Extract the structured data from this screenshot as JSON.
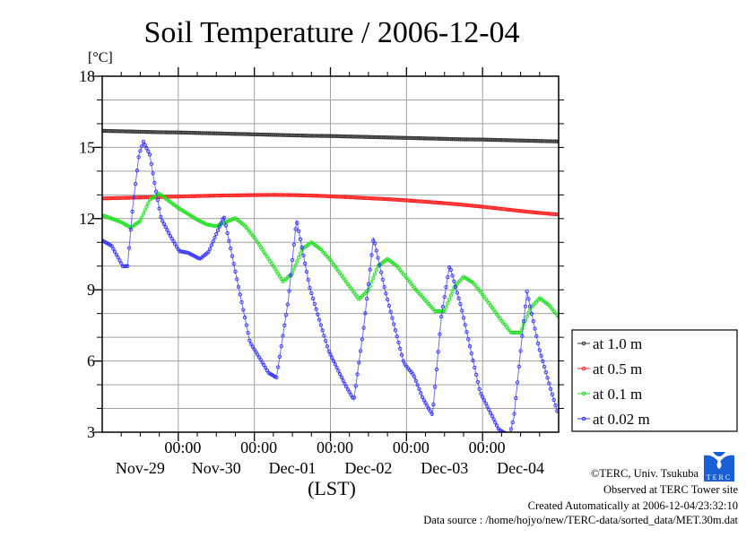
{
  "chart_data": {
    "type": "line",
    "title": "Soil Temperature / 2006-12-04",
    "ylabel": "[°C]",
    "xlabel": "(LST)",
    "ylim": [
      3,
      18
    ],
    "yticks": [
      "3",
      "6",
      "9",
      "12",
      "15",
      "18"
    ],
    "ytick_values": [
      3,
      6,
      9,
      12,
      15,
      18
    ],
    "x_units": "hours since Nov-29 00:00",
    "xlim": [
      0,
      144
    ],
    "xtick_hours": [
      24,
      48,
      72,
      96,
      120
    ],
    "xtick_labels": [
      "00:00",
      "00:00",
      "00:00",
      "00:00",
      "00:00"
    ],
    "date_label_hours": [
      -12,
      12,
      36,
      60,
      84,
      108
    ],
    "date_labels": [
      "Nov-29",
      "Nov-30",
      "Dec-01",
      "Dec-02",
      "Dec-03",
      "Dec-04"
    ],
    "grid": true,
    "legend_position": "right",
    "series": [
      {
        "name": "at 1.0 m",
        "color": "#333333",
        "x": [
          0,
          6,
          12,
          18,
          24,
          30,
          36,
          42,
          48,
          54,
          60,
          66,
          72,
          78,
          84,
          90,
          96,
          102,
          108,
          114,
          120,
          126,
          132,
          138,
          144
        ],
        "y": [
          15.7,
          15.68,
          15.66,
          15.64,
          15.63,
          15.61,
          15.59,
          15.57,
          15.55,
          15.53,
          15.51,
          15.49,
          15.48,
          15.46,
          15.44,
          15.42,
          15.4,
          15.38,
          15.36,
          15.34,
          15.33,
          15.31,
          15.29,
          15.27,
          15.25
        ]
      },
      {
        "name": "at 0.5 m",
        "color": "#ff2020",
        "x": [
          0,
          6,
          12,
          18,
          24,
          30,
          36,
          42,
          48,
          54,
          60,
          66,
          72,
          78,
          84,
          90,
          96,
          102,
          108,
          114,
          120,
          126,
          132,
          138,
          144
        ],
        "y": [
          12.85,
          12.87,
          12.89,
          12.91,
          12.93,
          12.95,
          12.97,
          12.98,
          12.99,
          13.0,
          12.99,
          12.97,
          12.94,
          12.9,
          12.86,
          12.82,
          12.77,
          12.71,
          12.65,
          12.58,
          12.5,
          12.41,
          12.32,
          12.24,
          12.17
        ]
      },
      {
        "name": "at 0.1 m",
        "color": "#20e020",
        "x": [
          0,
          3,
          6,
          9,
          12,
          15,
          18,
          21,
          24,
          27,
          30,
          33,
          36,
          39,
          42,
          45,
          48,
          51,
          54,
          57,
          60,
          63,
          66,
          69,
          72,
          75,
          78,
          81,
          84,
          87,
          90,
          93,
          96,
          99,
          102,
          105,
          108,
          111,
          114,
          117,
          120,
          123,
          126,
          129,
          132,
          135,
          138,
          141,
          144
        ],
        "y": [
          12.14,
          12.0,
          11.85,
          11.62,
          11.9,
          12.8,
          13.05,
          12.75,
          12.45,
          12.2,
          11.95,
          11.75,
          11.68,
          11.85,
          12.02,
          11.7,
          11.2,
          10.6,
          10.0,
          9.35,
          9.7,
          10.7,
          11.0,
          10.7,
          10.25,
          9.7,
          9.15,
          8.6,
          9.0,
          10.0,
          10.3,
          10.0,
          9.5,
          9.0,
          8.55,
          8.1,
          8.1,
          9.1,
          9.55,
          9.3,
          8.8,
          8.25,
          7.7,
          7.2,
          7.2,
          8.2,
          8.65,
          8.35,
          7.85
        ]
      },
      {
        "name": "at 0.02 m",
        "color": "#3030ff",
        "x": [
          0,
          3,
          6.5,
          8,
          9.6,
          11.6,
          13,
          15,
          16.7,
          18.6,
          21.5,
          24.3,
          27.1,
          30.8,
          33.6,
          38.4,
          41.8,
          46.6,
          52.5,
          55,
          58.7,
          61.3,
          65.5,
          71.4,
          76.5,
          79.4,
          82.5,
          85.6,
          89.2,
          95.2,
          98.3,
          101.1,
          104.2,
          107,
          109.6,
          113.2,
          119.2,
          125.1,
          128.5,
          129.9,
          131.9,
          134,
          137.8,
          143.7
        ],
        "y": [
          11.08,
          10.85,
          9.99,
          10.0,
          12.45,
          14.7,
          15.24,
          14.7,
          13.35,
          12.0,
          11.27,
          10.63,
          10.56,
          10.3,
          10.6,
          12.1,
          9.9,
          6.8,
          5.5,
          5.3,
          8.56,
          11.95,
          9.08,
          6.44,
          5.04,
          4.36,
          7.4,
          11.2,
          9.0,
          5.9,
          5.4,
          4.44,
          3.72,
          7.87,
          10.03,
          8.3,
          4.7,
          3.12,
          2.85,
          3.64,
          6.3,
          8.93,
          6.55,
          3.8
        ]
      }
    ]
  },
  "footer": {
    "copyright": "©TERC, Univ. Tsukuba",
    "observed": "Observed at TERC Tower site",
    "created": "Created Automatically at 2006-12-04/23:32:10",
    "source": "Data source : /home/hojyo/new/TERC-data/sorted_data/MET.30m.dat",
    "logo_text": "TERC"
  }
}
